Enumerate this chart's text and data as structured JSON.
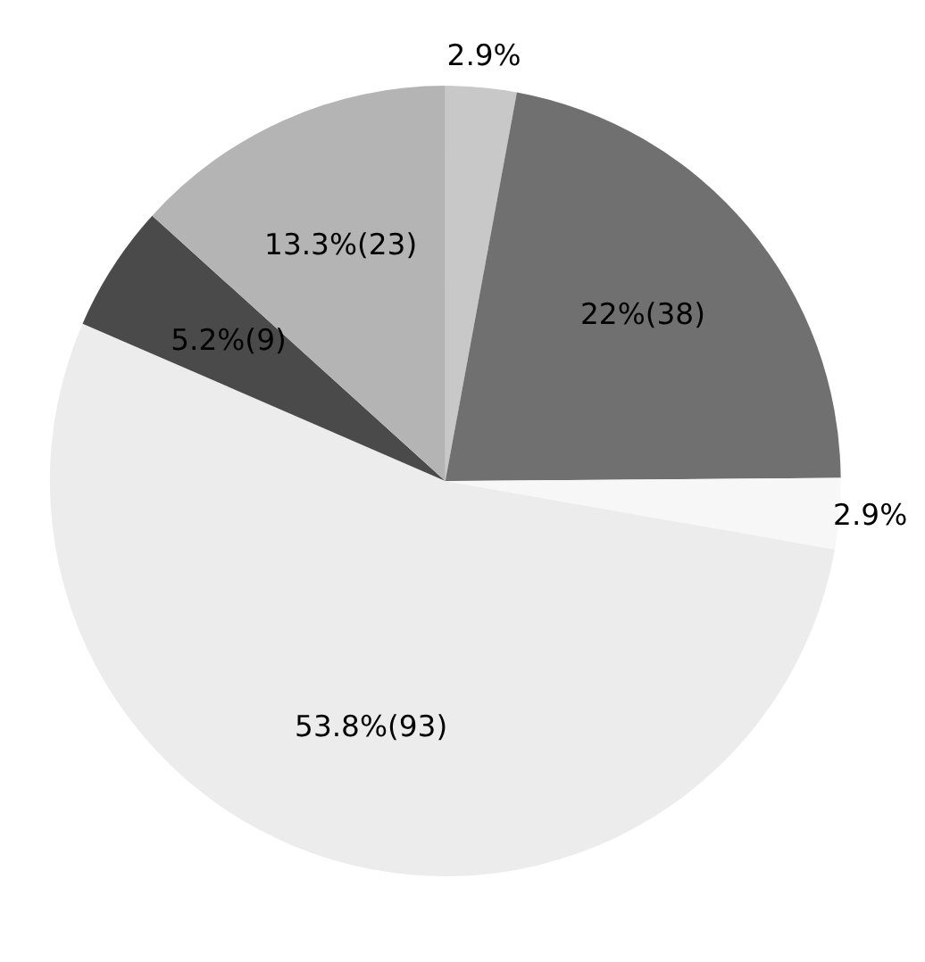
{
  "chart_data": {
    "type": "pie",
    "categories": [
      null,
      null,
      null,
      null,
      null,
      null
    ],
    "values": [
      2.9,
      22,
      2.9,
      53.8,
      5.2,
      13.3
    ],
    "colors": [
      "#c8c8c8",
      "#707070",
      "#f7f7f7",
      "#ececec",
      "#4a4a4a",
      "#b4b4b4"
    ],
    "value_labels": [
      "2.9%",
      "22%(38)",
      "2.9%",
      "53.8%(93)",
      "5.2%(9)",
      "13.3%(23)"
    ]
  }
}
